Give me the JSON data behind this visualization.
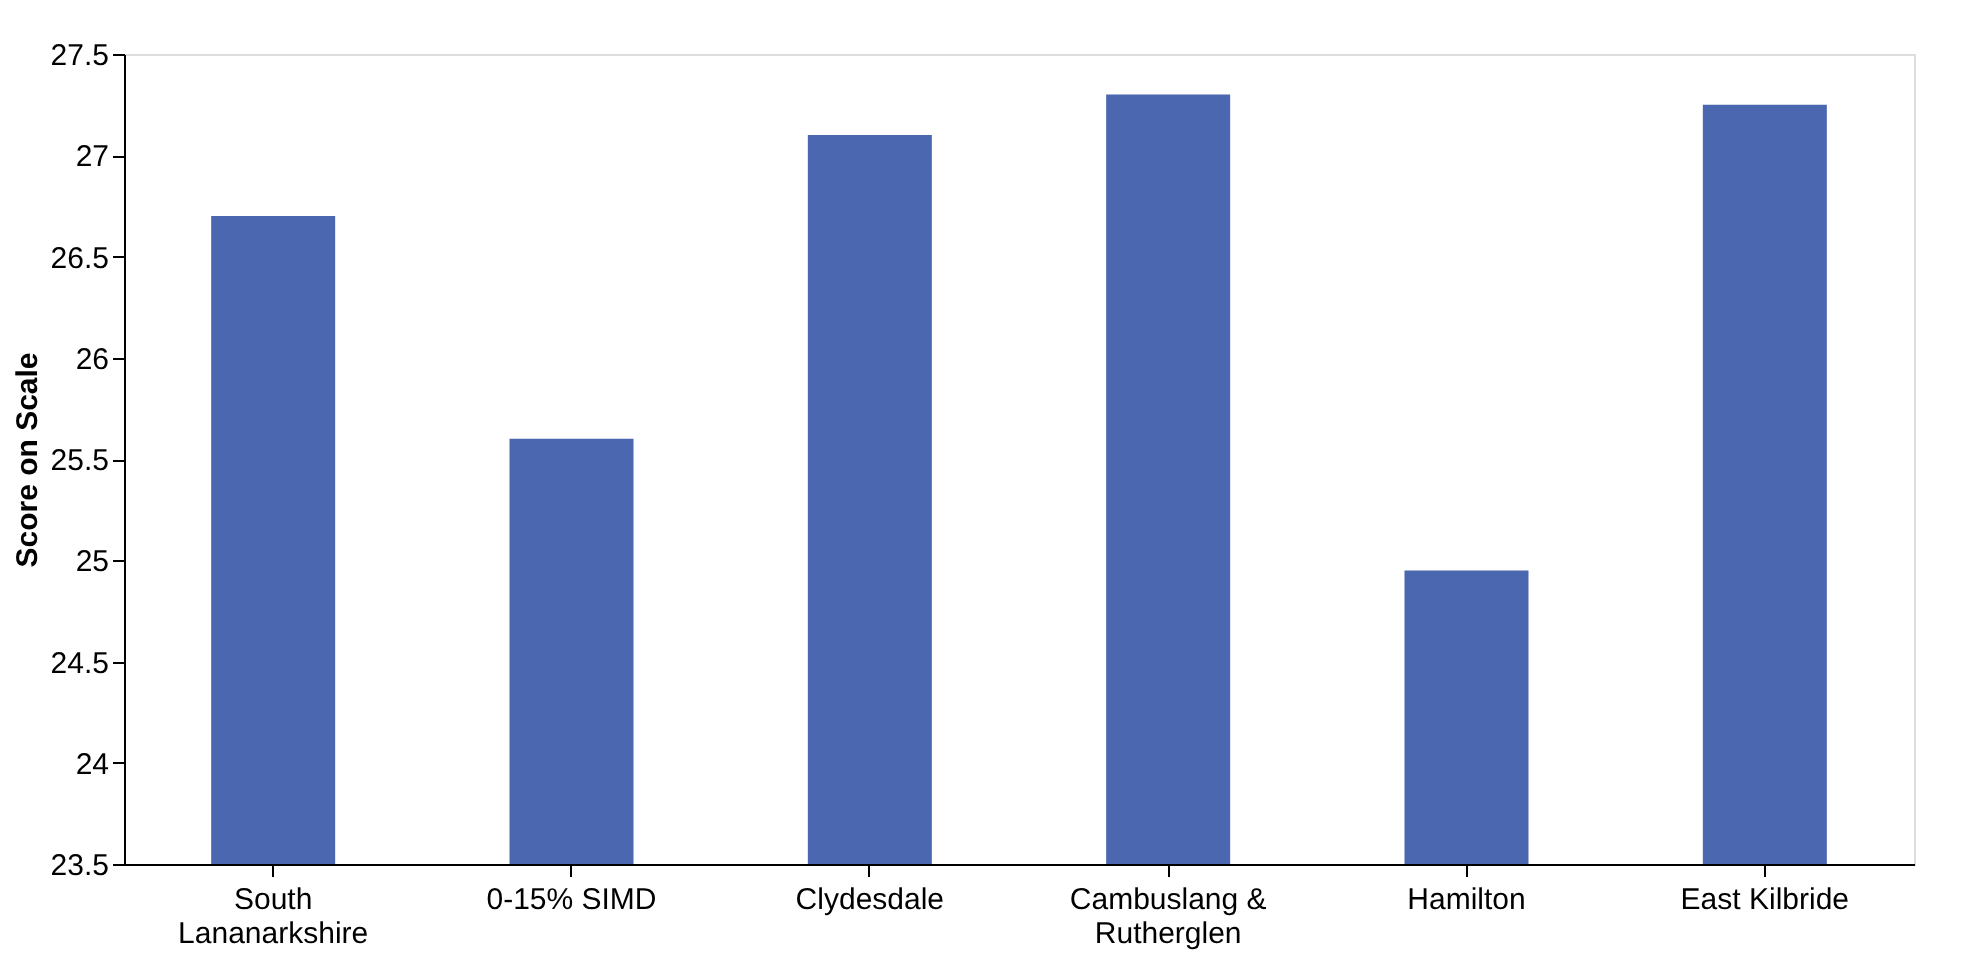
{
  "chart_data": {
    "type": "bar",
    "ylabel": "Score on Scale",
    "categories": [
      "South Lananarkshire",
      "0-15% SIMD",
      "Clydesdale",
      "Cambuslang & Rutherglen",
      "Hamilton",
      "East Kilbride"
    ],
    "values": [
      26.7,
      25.6,
      27.1,
      27.3,
      24.95,
      27.25
    ],
    "color": "#4a67b0",
    "ylim": [
      23.5,
      27.5
    ],
    "yticks": [
      23.5,
      24,
      24.5,
      25,
      25.5,
      26,
      26.5,
      27,
      27.5
    ],
    "grid": false
  }
}
